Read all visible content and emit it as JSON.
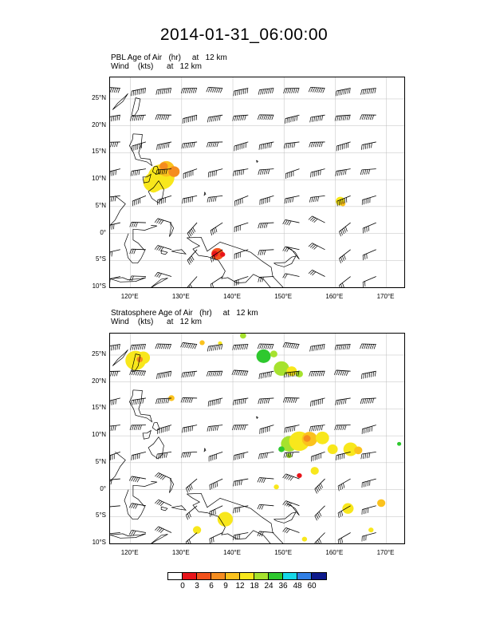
{
  "title": "2014-01-31_06:00:00",
  "panels": [
    {
      "id": "pbl",
      "label_line1": "PBL Age of Air   (hr)     at   12 km",
      "label_line2": "Wind    (kts)      at   12 km"
    },
    {
      "id": "strat",
      "label_line1": "Stratosphere Age of Air   (hr)     at   12 km",
      "label_line2": "Wind    (kts)      at   12 km"
    }
  ],
  "lat_labels": [
    "25°N",
    "20°N",
    "15°N",
    "10°N",
    "5°N",
    "0°",
    "5°S",
    "10°S"
  ],
  "lon_labels": [
    "120°E",
    "130°E",
    "140°E",
    "150°E",
    "160°E",
    "170°E"
  ],
  "colorbar": {
    "labels": [
      "0",
      "3",
      "6",
      "9",
      "12",
      "18",
      "24",
      "36",
      "48",
      "60"
    ],
    "colors": [
      "#ffffff",
      "#e8141a",
      "#f2521c",
      "#f58c1f",
      "#fbc21d",
      "#f8e71c",
      "#a6e22e",
      "#2ec82e",
      "#16d7e8",
      "#2f7fe6",
      "#0d1a8c"
    ]
  },
  "colors": {
    "coast": "#000000",
    "grid": "#bfbfbf",
    "barb": "#000000"
  }
}
